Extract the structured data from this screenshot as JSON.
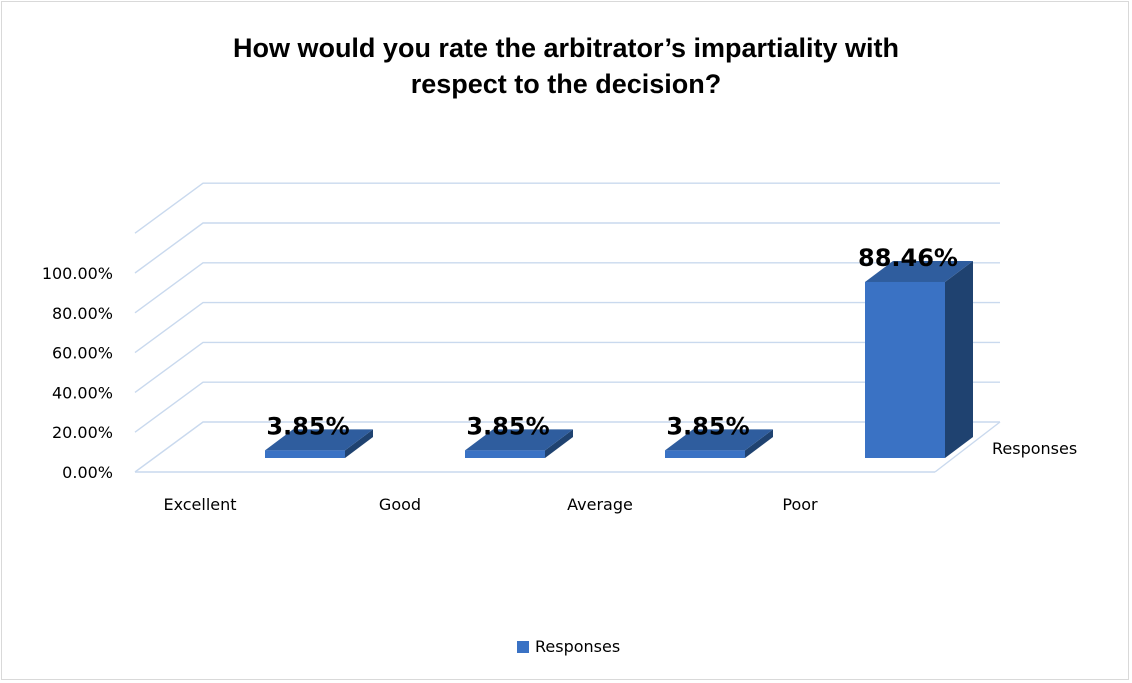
{
  "chart_data": {
    "type": "bar",
    "title_lines": [
      "How would you rate the arbitrator’s impartiality with",
      "respect to the decision?"
    ],
    "categories": [
      "Excellent",
      "Good",
      "Average",
      "Poor"
    ],
    "series": [
      {
        "name": "Responses",
        "values": [
          3.85,
          3.85,
          3.85,
          88.46
        ]
      }
    ],
    "data_labels": [
      "3.85%",
      "3.85%",
      "3.85%",
      "88.46%"
    ],
    "y_ticks": [
      0,
      20,
      40,
      60,
      80,
      100
    ],
    "y_tick_labels": [
      "0.00%",
      "20.00%",
      "40.00%",
      "60.00%",
      "80.00%",
      "100.00%"
    ],
    "ylim": [
      0,
      100
    ],
    "series_axis_label": "Responses",
    "legend": {
      "position": "bottom",
      "label": "Responses"
    },
    "grid": true,
    "style": "3d-column"
  },
  "colors": {
    "bar_front": "#3a72c4",
    "bar_top": "#2f5d9e",
    "bar_side": "#1f4270",
    "grid": "#c9d9ee"
  }
}
